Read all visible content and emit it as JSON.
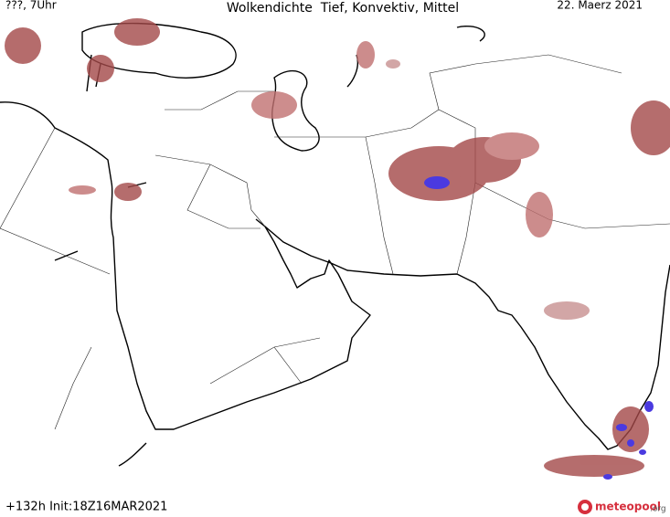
{
  "header": {
    "left": "???, 7Uhr",
    "title": "Wolkendichte  Tief, Konvektiv, Mittel",
    "date": "22. Maerz 2021"
  },
  "footer": {
    "run": "+132h Init:18Z16MAR2021",
    "logo": {
      "name": "meteopool",
      "suffix": ".org"
    }
  }
}
